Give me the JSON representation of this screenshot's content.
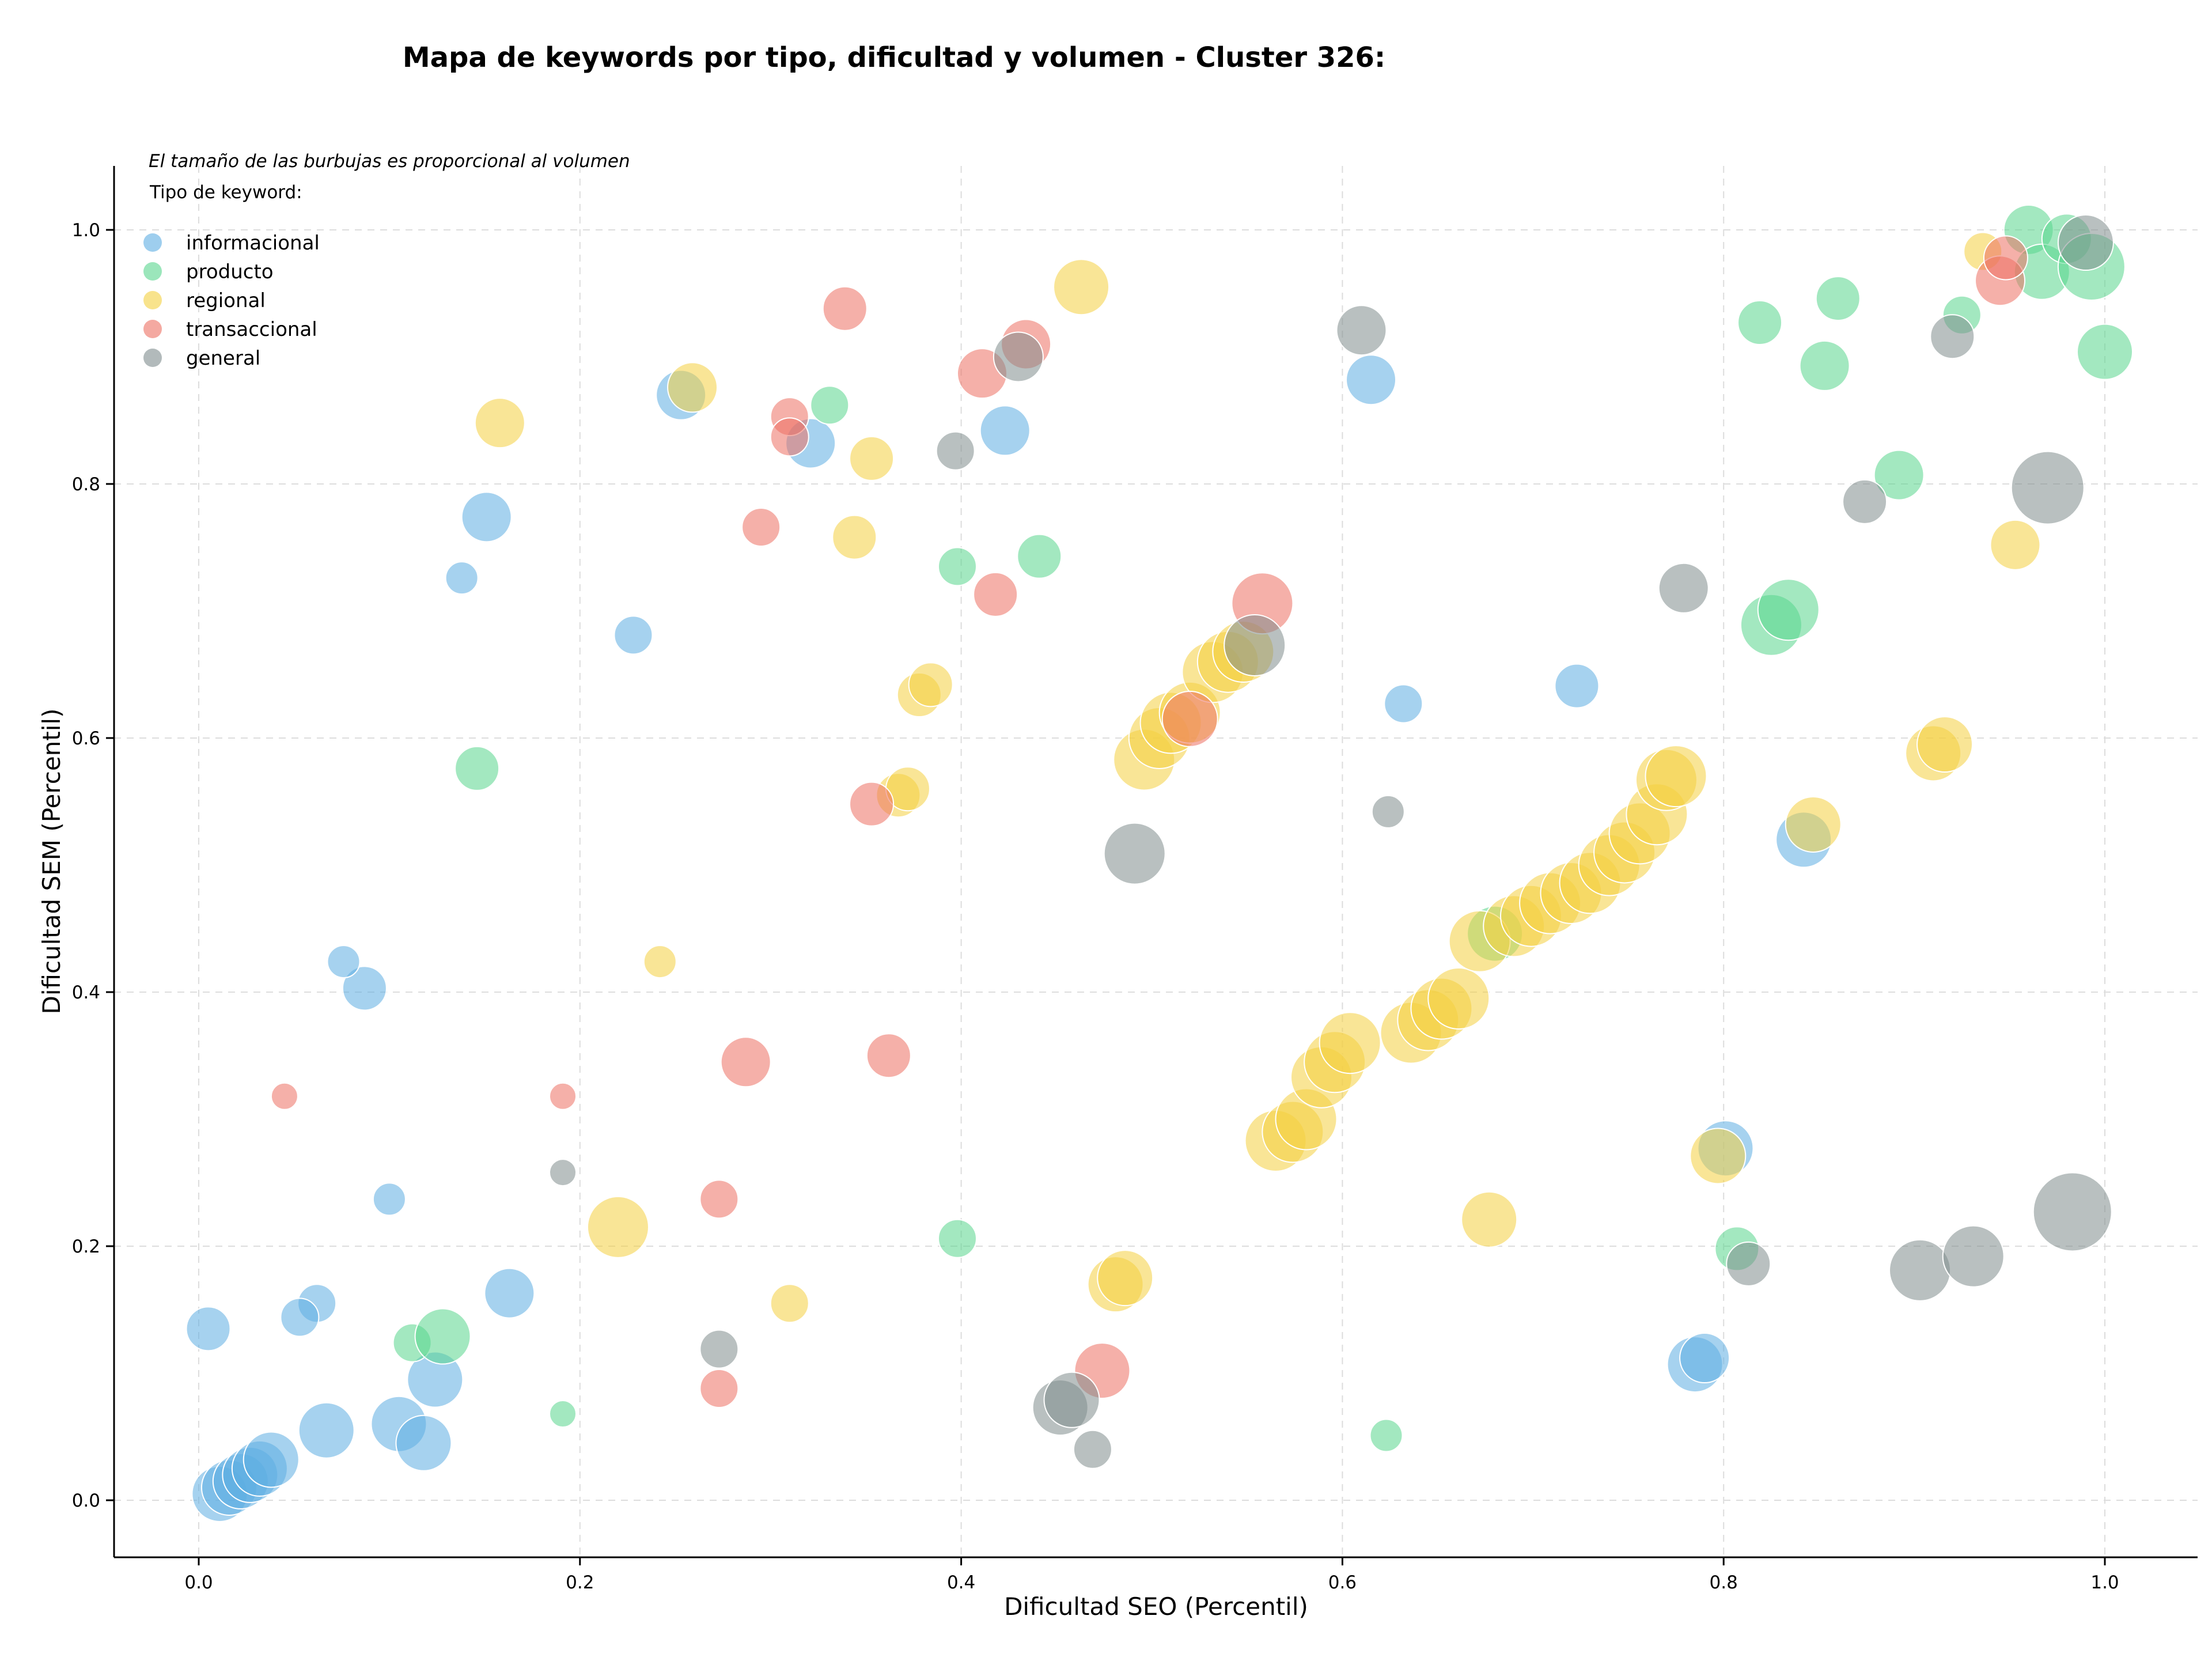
{
  "chart_data": {
    "type": "scatter",
    "title": "Mapa de keywords por tipo, dificultad y volumen - Cluster 326:",
    "xlabel": "Dificultad SEO (Percentil)",
    "ylabel": "Dificultad SEM (Percentil)",
    "note": "El tamaño de las burbujas es proporcional al volumen",
    "legend_title": "Tipo de keyword:",
    "legend_position": "upper-left",
    "grid": true,
    "xlim": [
      -0.045,
      1.05
    ],
    "ylim": [
      -0.045,
      1.05
    ],
    "xticks": [
      "0.0",
      "0.2",
      "0.4",
      "0.6",
      "0.8",
      "1.0"
    ],
    "yticks": [
      "0.0",
      "0.2",
      "0.4",
      "0.6",
      "0.8",
      "1.0"
    ],
    "xtick_values": [
      0,
      0.2,
      0.4,
      0.6,
      0.8,
      1.0
    ],
    "ytick_values": [
      0,
      0.2,
      0.4,
      0.6,
      0.8,
      1.0
    ],
    "series": [
      {
        "name": "informacional",
        "color": "#5DADE2",
        "points": [
          [
            0.005,
            0.135,
            3
          ],
          [
            0.011,
            0.005,
            4
          ],
          [
            0.016,
            0.01,
            4
          ],
          [
            0.022,
            0.015,
            4
          ],
          [
            0.027,
            0.02,
            4
          ],
          [
            0.032,
            0.025,
            4
          ],
          [
            0.038,
            0.032,
            4
          ],
          [
            0.062,
            0.155,
            2.5
          ],
          [
            0.053,
            0.144,
            2.5
          ],
          [
            0.067,
            0.055,
            4
          ],
          [
            0.105,
            0.06,
            4
          ],
          [
            0.118,
            0.045,
            4
          ],
          [
            0.124,
            0.095,
            4
          ],
          [
            0.163,
            0.163,
            3.5
          ],
          [
            0.1,
            0.237,
            2
          ],
          [
            0.087,
            0.403,
            3
          ],
          [
            0.076,
            0.424,
            2
          ],
          [
            0.138,
            0.726,
            2
          ],
          [
            0.151,
            0.774,
            3.5
          ],
          [
            0.228,
            0.681,
            2.5
          ],
          [
            0.253,
            0.87,
            3.5
          ],
          [
            0.321,
            0.832,
            3.5
          ],
          [
            0.423,
            0.842,
            3.5
          ],
          [
            0.615,
            0.882,
            3.5
          ],
          [
            0.632,
            0.627,
            2.5
          ],
          [
            0.723,
            0.641,
            3
          ],
          [
            0.785,
            0.107,
            4
          ],
          [
            0.79,
            0.112,
            3.5
          ],
          [
            0.801,
            0.277,
            4
          ],
          [
            0.842,
            0.52,
            4
          ]
        ]
      },
      {
        "name": "producto",
        "color": "#58D68D",
        "points": [
          [
            0.112,
            0.124,
            2.5
          ],
          [
            0.128,
            0.129,
            4
          ],
          [
            0.146,
            0.576,
            3
          ],
          [
            0.191,
            0.068,
            1.5
          ],
          [
            0.331,
            0.862,
            2.5
          ],
          [
            0.398,
            0.735,
            2.5
          ],
          [
            0.441,
            0.743,
            3
          ],
          [
            0.398,
            0.206,
            2.5
          ],
          [
            0.623,
            0.051,
            2
          ],
          [
            0.68,
            0.446,
            4
          ],
          [
            0.807,
            0.198,
            3
          ],
          [
            0.819,
            0.927,
            3
          ],
          [
            0.825,
            0.689,
            4.5
          ],
          [
            0.834,
            0.701,
            4.5
          ],
          [
            0.853,
            0.893,
            3.5
          ],
          [
            0.86,
            0.946,
            3
          ],
          [
            0.892,
            0.807,
            3.5
          ],
          [
            0.925,
            0.933,
            2.5
          ],
          [
            0.96,
            1.0,
            3.5
          ],
          [
            0.967,
            0.967,
            4
          ],
          [
            0.98,
            0.993,
            3.5
          ],
          [
            0.993,
            0.971,
            5
          ],
          [
            1.0,
            0.904,
            4
          ]
        ]
      },
      {
        "name": "regional",
        "color": "#F4D03F",
        "points": [
          [
            0.158,
            0.848,
            3.5
          ],
          [
            0.22,
            0.215,
            4.5
          ],
          [
            0.242,
            0.424,
            2
          ],
          [
            0.259,
            0.876,
            3.5
          ],
          [
            0.31,
            0.155,
            2.5
          ],
          [
            0.344,
            0.758,
            3
          ],
          [
            0.353,
            0.82,
            3
          ],
          [
            0.367,
            0.555,
            3
          ],
          [
            0.372,
            0.56,
            3
          ],
          [
            0.378,
            0.634,
            3
          ],
          [
            0.384,
            0.642,
            3
          ],
          [
            0.463,
            0.955,
            4
          ],
          [
            0.481,
            0.17,
            4
          ],
          [
            0.486,
            0.175,
            4
          ],
          [
            0.496,
            0.583,
            4.5
          ],
          [
            0.504,
            0.6,
            4.5
          ],
          [
            0.51,
            0.612,
            4.5
          ],
          [
            0.52,
            0.62,
            4.5
          ],
          [
            0.532,
            0.652,
            4.5
          ],
          [
            0.54,
            0.66,
            4.5
          ],
          [
            0.548,
            0.668,
            4.5
          ],
          [
            0.565,
            0.283,
            4.5
          ],
          [
            0.574,
            0.29,
            4.5
          ],
          [
            0.581,
            0.3,
            4.5
          ],
          [
            0.589,
            0.333,
            4.5
          ],
          [
            0.596,
            0.345,
            4.5
          ],
          [
            0.604,
            0.36,
            4.5
          ],
          [
            0.636,
            0.368,
            4.5
          ],
          [
            0.645,
            0.378,
            4.5
          ],
          [
            0.652,
            0.387,
            4.5
          ],
          [
            0.661,
            0.395,
            4.5
          ],
          [
            0.672,
            0.44,
            4.5
          ],
          [
            0.677,
            0.221,
            4
          ],
          [
            0.69,
            0.452,
            4.5
          ],
          [
            0.699,
            0.46,
            4.5
          ],
          [
            0.709,
            0.47,
            4.5
          ],
          [
            0.72,
            0.478,
            4.5
          ],
          [
            0.73,
            0.486,
            4.5
          ],
          [
            0.74,
            0.5,
            4.5
          ],
          [
            0.748,
            0.51,
            4.5
          ],
          [
            0.756,
            0.525,
            4.5
          ],
          [
            0.765,
            0.54,
            4.5
          ],
          [
            0.77,
            0.567,
            4.5
          ],
          [
            0.775,
            0.57,
            4.5
          ],
          [
            0.797,
            0.271,
            4
          ],
          [
            0.847,
            0.532,
            4
          ],
          [
            0.91,
            0.588,
            4
          ],
          [
            0.916,
            0.595,
            4
          ],
          [
            0.936,
            0.983,
            2.5
          ],
          [
            0.953,
            0.752,
            3.5
          ]
        ]
      },
      {
        "name": "transaccional",
        "color": "#EC7063",
        "points": [
          [
            0.045,
            0.318,
            1.5
          ],
          [
            0.191,
            0.318,
            1.5
          ],
          [
            0.273,
            0.237,
            2.5
          ],
          [
            0.273,
            0.088,
            2.5
          ],
          [
            0.287,
            0.345,
            3.5
          ],
          [
            0.295,
            0.766,
            2.5
          ],
          [
            0.31,
            0.853,
            2.5
          ],
          [
            0.31,
            0.837,
            2.5
          ],
          [
            0.339,
            0.938,
            3
          ],
          [
            0.353,
            0.548,
            3
          ],
          [
            0.362,
            0.35,
            3
          ],
          [
            0.411,
            0.887,
            3.5
          ],
          [
            0.418,
            0.713,
            3
          ],
          [
            0.434,
            0.91,
            3.5
          ],
          [
            0.474,
            0.102,
            4
          ],
          [
            0.52,
            0.615,
            4
          ],
          [
            0.558,
            0.706,
            4.5
          ],
          [
            0.945,
            0.96,
            3.5
          ],
          [
            0.948,
            0.978,
            3
          ]
        ]
      },
      {
        "name": "general",
        "color": "#7F8C8D",
        "points": [
          [
            0.191,
            0.258,
            1.5
          ],
          [
            0.273,
            0.119,
            2.5
          ],
          [
            0.397,
            0.826,
            2.5
          ],
          [
            0.43,
            0.9,
            3.5
          ],
          [
            0.452,
            0.073,
            4
          ],
          [
            0.458,
            0.079,
            4
          ],
          [
            0.469,
            0.04,
            2.5
          ],
          [
            0.491,
            0.509,
            4.5
          ],
          [
            0.554,
            0.673,
            4.5
          ],
          [
            0.61,
            0.921,
            3.5
          ],
          [
            0.624,
            0.542,
            2
          ],
          [
            0.779,
            0.718,
            3.5
          ],
          [
            0.813,
            0.186,
            3
          ],
          [
            0.874,
            0.786,
            3
          ],
          [
            0.903,
            0.181,
            4.5
          ],
          [
            0.92,
            0.916,
            3
          ],
          [
            0.931,
            0.192,
            4.5
          ],
          [
            0.97,
            0.797,
            5.5
          ],
          [
            0.983,
            0.227,
            6
          ],
          [
            0.99,
            0.99,
            4
          ]
        ]
      }
    ]
  }
}
